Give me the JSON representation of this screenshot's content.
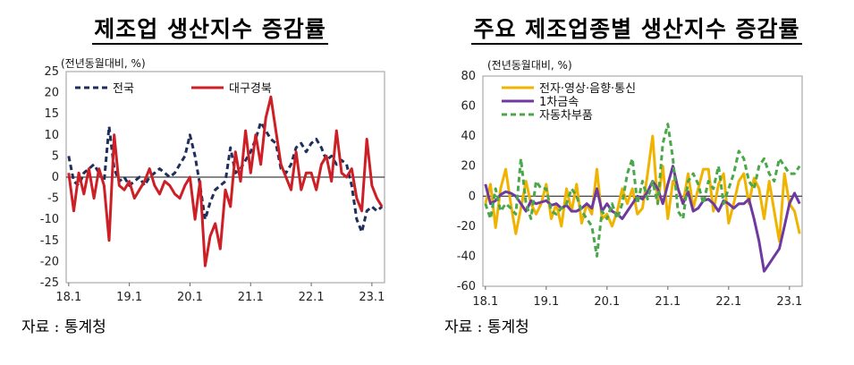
{
  "charts": [
    {
      "id": "left",
      "title": "제조업 생산지수 증감률",
      "unit": "(전년동월대비, %)",
      "source": "자료 : 통계청",
      "chart_data": {
        "type": "line",
        "x_ticks": [
          "18.1",
          "19.1",
          "20.1",
          "21.1",
          "22.1",
          "23.1"
        ],
        "ylim": [
          -25,
          25
        ],
        "y_ticks": [
          25,
          20,
          15,
          10,
          5,
          0,
          -5,
          -10,
          -15,
          -20,
          -25
        ],
        "legend_position": "top-left",
        "series": [
          {
            "name": "전국",
            "color": "#1f2f5c",
            "style": "dashed",
            "values": [
              5,
              -1,
              -2,
              1,
              2,
              3,
              1,
              -1,
              12,
              2,
              -1,
              0,
              -2,
              -1,
              0,
              -2,
              0,
              1,
              2,
              1,
              0,
              1,
              3,
              5,
              10,
              5,
              -2,
              -10,
              -6,
              -3,
              -2,
              -1,
              7,
              1,
              2,
              4,
              6,
              9,
              13,
              11,
              9,
              8,
              2,
              1,
              3,
              7,
              8,
              6,
              8,
              9,
              7,
              4,
              5,
              3,
              4,
              3,
              -2,
              -10,
              -13,
              -8,
              -7,
              -8,
              -7
            ]
          },
          {
            "name": "대구경북",
            "color": "#cc1f26",
            "style": "solid",
            "values": [
              1,
              -8,
              1,
              -4,
              2,
              -5,
              2,
              -2,
              -15,
              10,
              -2,
              -3,
              -1,
              -5,
              -3,
              -1,
              2,
              -2,
              -4,
              -1,
              -2,
              -4,
              -5,
              -2,
              0,
              -10,
              -1,
              -21,
              -14,
              -11,
              -17,
              -3,
              -7,
              6,
              -1,
              11,
              1,
              10,
              3,
              14,
              19,
              11,
              3,
              0,
              -3,
              6,
              -3,
              1,
              1,
              -3,
              3,
              5,
              -1,
              11,
              1,
              0,
              2,
              -5,
              -8,
              9,
              -2,
              -5,
              -7
            ]
          }
        ]
      }
    },
    {
      "id": "right",
      "title": "주요 제조업종별 생산지수 증감률",
      "unit": "(전년동월대비, %)",
      "source": "자료 : 통계청",
      "chart_data": {
        "type": "line",
        "x_ticks": [
          "18.1",
          "19.1",
          "20.1",
          "21.1",
          "22.1",
          "23.1"
        ],
        "ylim": [
          -60,
          80
        ],
        "y_ticks": [
          80,
          60,
          40,
          20,
          0,
          -20,
          -40,
          -60
        ],
        "legend_position": "top-left",
        "series": [
          {
            "name": "전자·영상·음향·통신",
            "color": "#f0b400",
            "style": "solid",
            "values": [
              -5,
              8,
              -21,
              5,
              18,
              -5,
              -25,
              -8,
              10,
              -5,
              -12,
              -5,
              8,
              -15,
              -5,
              -20,
              5,
              -10,
              8,
              -18,
              -5,
              -12,
              18,
              -15,
              -12,
              -20,
              -10,
              5,
              -5,
              5,
              -12,
              -8,
              15,
              40,
              -5,
              20,
              -15,
              10,
              5,
              -5,
              15,
              -8,
              5,
              18,
              18,
              -10,
              8,
              15,
              -18,
              -5,
              10,
              15,
              -5,
              12,
              5,
              -15,
              10,
              -10,
              -30,
              15,
              -5,
              -10,
              -25
            ]
          },
          {
            "name": "1차금속",
            "color": "#6e3aa0",
            "style": "solid",
            "values": [
              8,
              -5,
              -3,
              1,
              3,
              2,
              0,
              -5,
              -10,
              -3,
              -5,
              -4,
              -3,
              -6,
              -5,
              -8,
              -6,
              -10,
              -10,
              -8,
              -5,
              -8,
              5,
              -10,
              -5,
              -10,
              -12,
              -15,
              -10,
              -5,
              0,
              -2,
              3,
              10,
              5,
              -5,
              8,
              20,
              5,
              -5,
              3,
              -10,
              -8,
              -3,
              -2,
              -5,
              -10,
              -3,
              -5,
              -8,
              -5,
              -5,
              -2,
              -15,
              -30,
              -50,
              -45,
              -40,
              -35,
              -20,
              -5,
              2,
              -5
            ]
          },
          {
            "name": "자동차부품",
            "color": "#4aa84a",
            "style": "dashed",
            "values": [
              -5,
              -15,
              5,
              -10,
              -5,
              -8,
              -12,
              25,
              -5,
              -15,
              10,
              5,
              5,
              -10,
              -12,
              -8,
              -5,
              5,
              0,
              -10,
              -15,
              -20,
              -40,
              -10,
              -15,
              -5,
              -15,
              -5,
              15,
              25,
              -5,
              10,
              -2,
              10,
              -5,
              35,
              48,
              25,
              -10,
              -15,
              10,
              15,
              8,
              -5,
              10,
              5,
              20,
              -5,
              5,
              15,
              30,
              25,
              10,
              5,
              20,
              25,
              15,
              10,
              25,
              20,
              15,
              15,
              20
            ]
          }
        ]
      }
    }
  ]
}
